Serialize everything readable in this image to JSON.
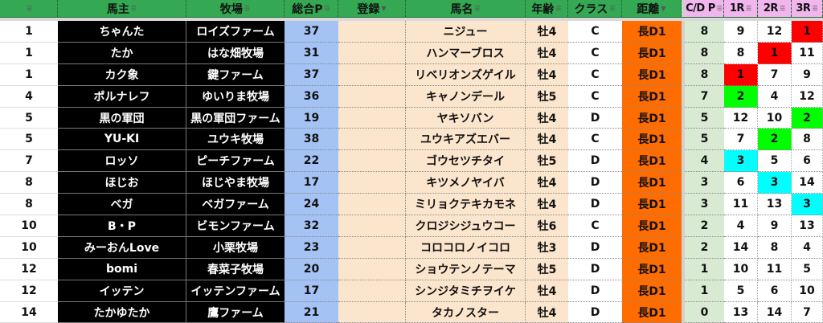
{
  "headers": {
    "rank": "",
    "owner": "馬主",
    "farm": "牧場",
    "points": "総合P",
    "registration": "登録",
    "horse": "馬名",
    "age": "年齢",
    "class": "クラス",
    "distance": "距離",
    "cd_points": "C/D P",
    "r1": "1R",
    "r2": "2R",
    "r3": "3R"
  },
  "highlight_colors": {
    "1": "#ff0000",
    "2": "#00ff00",
    "3": "#00ffff"
  },
  "rows": [
    {
      "rank": "1",
      "owner": "ちゃんた",
      "farm": "ロイズファーム",
      "points": "37",
      "registration": "",
      "horse": "ニジュー",
      "age": "牡4",
      "class": "C",
      "distance": "長D1",
      "cd_points": "8",
      "r1": "9",
      "r2": "12",
      "r3": "1"
    },
    {
      "rank": "1",
      "owner": "たか",
      "farm": "はな畑牧場",
      "points": "31",
      "registration": "",
      "horse": "ハンマーブロス",
      "age": "牡4",
      "class": "C",
      "distance": "長D1",
      "cd_points": "8",
      "r1": "8",
      "r2": "1",
      "r3": "11"
    },
    {
      "rank": "1",
      "owner": "カク象",
      "farm": "鍵ファーム",
      "points": "37",
      "registration": "",
      "horse": "リベリオンズゲイル",
      "age": "牡4",
      "class": "C",
      "distance": "長D1",
      "cd_points": "8",
      "r1": "1",
      "r2": "7",
      "r3": "9"
    },
    {
      "rank": "4",
      "owner": "ポルナレフ",
      "farm": "ゆいりま牧場",
      "points": "36",
      "registration": "",
      "horse": "キャノンデール",
      "age": "牡5",
      "class": "C",
      "distance": "長D1",
      "cd_points": "7",
      "r1": "2",
      "r2": "4",
      "r3": "12"
    },
    {
      "rank": "5",
      "owner": "黒の軍団",
      "farm": "黒の軍団ファーム",
      "points": "19",
      "registration": "",
      "horse": "ヤキソバン",
      "age": "牡4",
      "class": "D",
      "distance": "長D1",
      "cd_points": "5",
      "r1": "12",
      "r2": "10",
      "r3": "2"
    },
    {
      "rank": "5",
      "owner": "YU-KI",
      "farm": "ユウキ牧場",
      "points": "38",
      "registration": "",
      "horse": "ユウキアズエバー",
      "age": "牡4",
      "class": "C",
      "distance": "長D1",
      "cd_points": "5",
      "r1": "7",
      "r2": "2",
      "r3": "8"
    },
    {
      "rank": "7",
      "owner": "ロッソ",
      "farm": "ピーチファーム",
      "points": "22",
      "registration": "",
      "horse": "ゴウセツチタイ",
      "age": "牡5",
      "class": "D",
      "distance": "長D1",
      "cd_points": "4",
      "r1": "3",
      "r2": "5",
      "r3": "6"
    },
    {
      "rank": "8",
      "owner": "ほじお",
      "farm": "ほじやま牧場",
      "points": "17",
      "registration": "",
      "horse": "キツメノヤイバ",
      "age": "牡4",
      "class": "D",
      "distance": "長D1",
      "cd_points": "3",
      "r1": "6",
      "r2": "3",
      "r3": "14"
    },
    {
      "rank": "8",
      "owner": "ベガ",
      "farm": "ベガファーム",
      "points": "24",
      "registration": "",
      "horse": "ミリョクテキカモネ",
      "age": "牡4",
      "class": "D",
      "distance": "長D1",
      "cd_points": "3",
      "r1": "11",
      "r2": "13",
      "r3": "3"
    },
    {
      "rank": "10",
      "owner": "B・P",
      "farm": "ビモンファーム",
      "points": "32",
      "registration": "",
      "horse": "クロジシジュウコー",
      "age": "牡6",
      "class": "C",
      "distance": "長D1",
      "cd_points": "2",
      "r1": "4",
      "r2": "9",
      "r3": "13"
    },
    {
      "rank": "10",
      "owner": "みーおんLove",
      "farm": "小栗牧場",
      "points": "23",
      "registration": "",
      "horse": "コロコロノイコロ",
      "age": "牡3",
      "class": "D",
      "distance": "長D1",
      "cd_points": "2",
      "r1": "14",
      "r2": "8",
      "r3": "4"
    },
    {
      "rank": "12",
      "owner": "bomi",
      "farm": "春菜子牧場",
      "points": "20",
      "registration": "",
      "horse": "ショウテンノテーマ",
      "age": "牡5",
      "class": "D",
      "distance": "長D1",
      "cd_points": "1",
      "r1": "10",
      "r2": "11",
      "r3": "5"
    },
    {
      "rank": "12",
      "owner": "イッテン",
      "farm": "イッテンファーム",
      "points": "17",
      "registration": "",
      "horse": "シンジタミチヲイケ",
      "age": "牡4",
      "class": "D",
      "distance": "長D1",
      "cd_points": "1",
      "r1": "5",
      "r2": "6",
      "r3": "10"
    },
    {
      "rank": "14",
      "owner": "たかゆたか",
      "farm": "鷹ファーム",
      "points": "21",
      "registration": "",
      "horse": "タカノスター",
      "age": "牡4",
      "class": "D",
      "distance": "長D1",
      "cd_points": "0",
      "r1": "13",
      "r2": "14",
      "r3": "7"
    }
  ]
}
